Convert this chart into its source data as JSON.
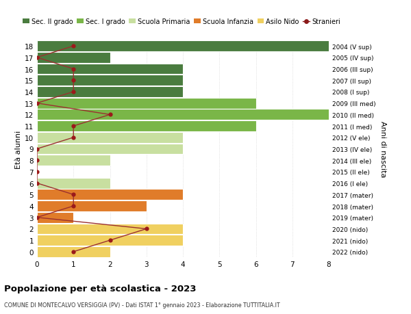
{
  "ages": [
    18,
    17,
    16,
    15,
    14,
    13,
    12,
    11,
    10,
    9,
    8,
    7,
    6,
    5,
    4,
    3,
    2,
    1,
    0
  ],
  "right_labels": [
    "2004 (V sup)",
    "2005 (IV sup)",
    "2006 (III sup)",
    "2007 (II sup)",
    "2008 (I sup)",
    "2009 (III med)",
    "2010 (II med)",
    "2011 (I med)",
    "2012 (V ele)",
    "2013 (IV ele)",
    "2014 (III ele)",
    "2015 (II ele)",
    "2016 (I ele)",
    "2017 (mater)",
    "2018 (mater)",
    "2019 (mater)",
    "2020 (nido)",
    "2021 (nido)",
    "2022 (nido)"
  ],
  "bar_values": [
    8,
    2,
    4,
    4,
    4,
    6,
    8,
    6,
    4,
    4,
    2,
    0,
    2,
    4,
    3,
    1,
    4,
    4,
    2
  ],
  "stranieri": [
    1,
    0,
    1,
    1,
    1,
    0,
    2,
    1,
    1,
    0,
    0,
    0,
    0,
    1,
    1,
    0,
    3,
    2,
    1
  ],
  "bar_colors": [
    "#4a7c3f",
    "#4a7c3f",
    "#4a7c3f",
    "#4a7c3f",
    "#4a7c3f",
    "#7ab648",
    "#7ab648",
    "#7ab648",
    "#c8dfa0",
    "#c8dfa0",
    "#c8dfa0",
    "#c8dfa0",
    "#c8dfa0",
    "#e07c2a",
    "#e07c2a",
    "#e07c2a",
    "#f0d060",
    "#f0d060",
    "#f0d060"
  ],
  "legend_labels": [
    "Sec. II grado",
    "Sec. I grado",
    "Scuola Primaria",
    "Scuola Infanzia",
    "Asilo Nido",
    "Stranieri"
  ],
  "legend_colors": [
    "#4a7c3f",
    "#7ab648",
    "#c8dfa0",
    "#e07c2a",
    "#f0d060",
    "#8b1a1a"
  ],
  "stranieri_line_color": "#9b3030",
  "stranieri_marker_color": "#9b1a1a",
  "ylabel_left": "Età alunni",
  "ylabel_right": "Anni di nascita",
  "title": "Popolazione per età scolastica - 2023",
  "subtitle": "COMUNE DI MONTECALVO VERSIGGIA (PV) - Dati ISTAT 1° gennaio 2023 - Elaborazione TUTTITALIA.IT",
  "xlim": [
    0,
    8
  ],
  "xticks": [
    0,
    1,
    2,
    3,
    4,
    5,
    6,
    7,
    8
  ],
  "background_color": "#ffffff",
  "bar_edge_color": "#ffffff",
  "grid_color": "#cccccc"
}
